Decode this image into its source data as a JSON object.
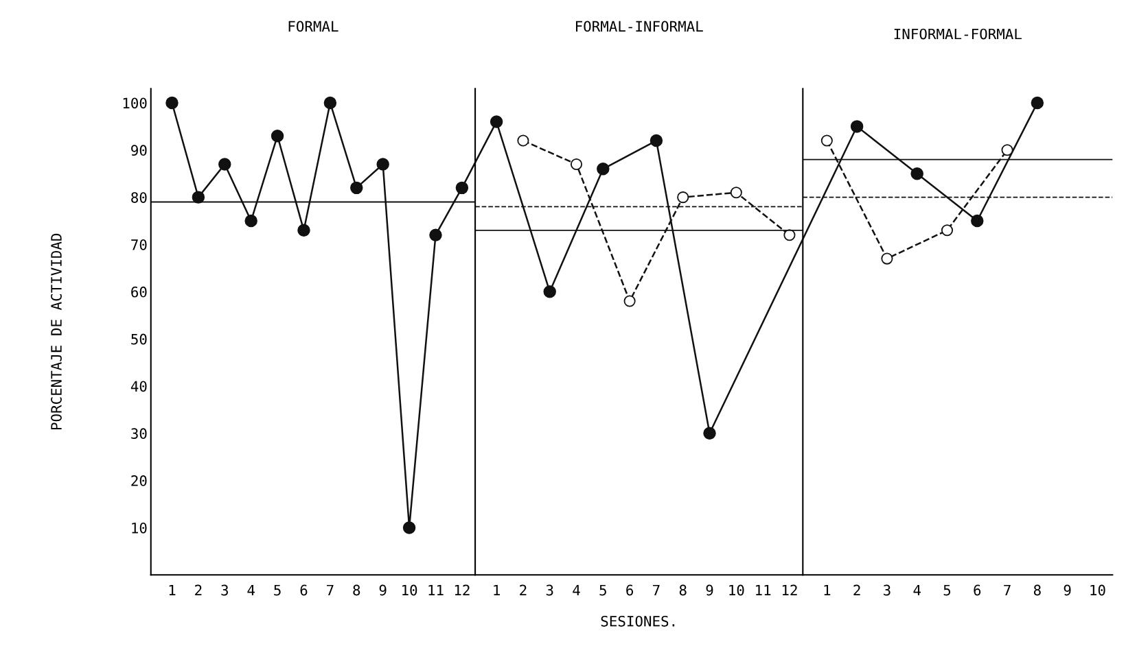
{
  "chart_data": [
    {
      "type": "line",
      "title": "FORMAL",
      "ylabel": "PORCENTAJE DE ACTIVIDAD",
      "categories": [
        "1",
        "2",
        "3",
        "4",
        "5",
        "6",
        "7",
        "8",
        "9",
        "10",
        "11",
        "12"
      ],
      "ylim": [
        0,
        103
      ],
      "yticks": [
        10,
        20,
        30,
        40,
        50,
        60,
        70,
        80,
        90,
        100
      ],
      "marker": "circle",
      "grid": false,
      "legend": false,
      "series": [
        {
          "color": "#111111",
          "line_style": "solid",
          "values": [
            100,
            80,
            87,
            75,
            93,
            73,
            100,
            82,
            87,
            10,
            72,
            82
          ]
        }
      ],
      "ref_lines": [
        {
          "axis": "y",
          "value": 79,
          "color": "#111111",
          "line_style": "solid"
        }
      ]
    },
    {
      "type": "line",
      "title": "FORMAL-INFORMAL",
      "xlabel": "SESIONES.",
      "categories": [
        "1",
        "2",
        "3",
        "4",
        "5",
        "6",
        "7",
        "8",
        "9",
        "10",
        "11",
        "12"
      ],
      "ylim": [
        0,
        103
      ],
      "yticks": [
        10,
        20,
        30,
        40,
        50,
        60,
        70,
        80,
        90,
        100
      ],
      "tick_labels": "x",
      "marker": "circle",
      "grid": false,
      "legend": false,
      "series": [
        {
          "color": "#111111",
          "line_style": "solid",
          "values": [
            96,
            null,
            60,
            null,
            86,
            null,
            92,
            null,
            30,
            null,
            null,
            null
          ]
        },
        {
          "color": "#111111",
          "line_style": "dashed",
          "values": [
            null,
            92,
            null,
            87,
            null,
            58,
            null,
            80,
            null,
            81,
            null,
            72
          ]
        }
      ],
      "ref_lines": [
        {
          "axis": "y",
          "value": 73,
          "color": "#111111",
          "line_style": "solid"
        },
        {
          "axis": "y",
          "value": 78,
          "color": "#111111",
          "line_style": "dashed"
        }
      ]
    },
    {
      "type": "line",
      "title": "INFORMAL-FORMAL",
      "categories": [
        "1",
        "2",
        "3",
        "4",
        "5",
        "6",
        "7",
        "8",
        "9",
        "10"
      ],
      "ylim": [
        0,
        103
      ],
      "yticks": [
        10,
        20,
        30,
        40,
        50,
        60,
        70,
        80,
        90,
        100
      ],
      "tick_labels": "x",
      "marker": "circle",
      "grid": false,
      "legend": false,
      "series": [
        {
          "color": "#111111",
          "line_style": "solid",
          "values": [
            null,
            95,
            null,
            85,
            null,
            75,
            null,
            100,
            null,
            null
          ]
        },
        {
          "color": "#111111",
          "line_style": "dashed",
          "values": [
            92,
            null,
            67,
            null,
            73,
            null,
            90,
            null,
            null,
            null
          ]
        }
      ],
      "ref_lines": [
        {
          "axis": "y",
          "value": 88,
          "color": "#111111",
          "line_style": "solid"
        },
        {
          "axis": "y",
          "value": 80,
          "color": "#111111",
          "line_style": "dashed"
        }
      ]
    }
  ]
}
